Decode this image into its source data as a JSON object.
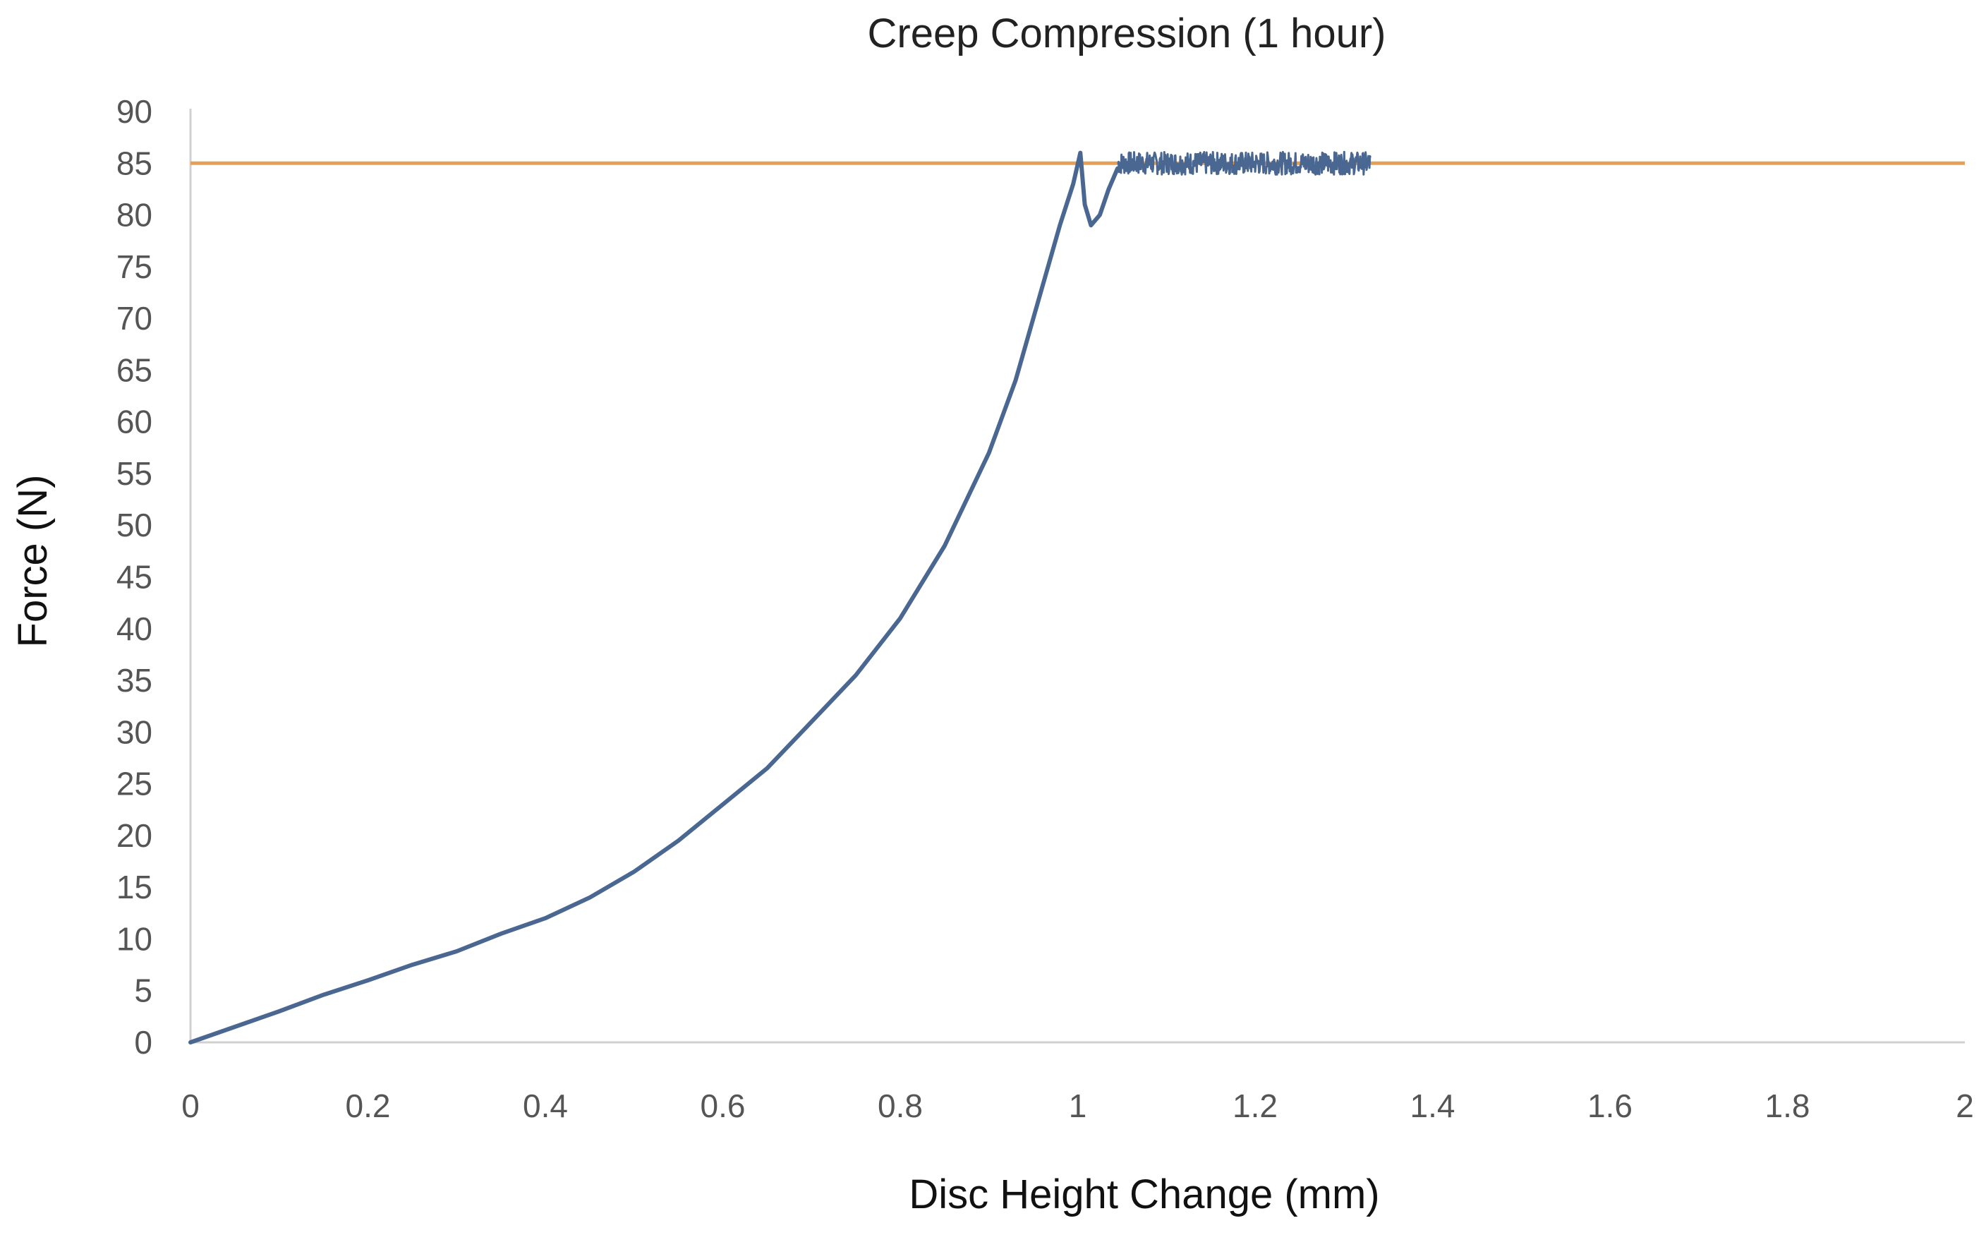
{
  "chart_data": {
    "type": "line",
    "title": "Creep Compression (1 hour)",
    "xlabel": "Disc Height Change  (mm)",
    "ylabel": "Force (N)",
    "xlim": [
      0,
      2
    ],
    "ylim": [
      0,
      90
    ],
    "x_ticks": [
      "0",
      "0.2",
      "0.4",
      "0.6",
      "0.8",
      "1",
      "1.2",
      "1.4",
      "1.6",
      "1.8",
      "2"
    ],
    "y_ticks": [
      "0",
      "5",
      "10",
      "15",
      "20",
      "25",
      "30",
      "35",
      "40",
      "45",
      "50",
      "55",
      "60",
      "65",
      "70",
      "75",
      "80",
      "85",
      "90"
    ],
    "grid": false,
    "legend": "none",
    "series": [
      {
        "color": "#4a6791",
        "x": [
          0,
          0.05,
          0.1,
          0.15,
          0.2,
          0.25,
          0.3,
          0.35,
          0.4,
          0.45,
          0.5,
          0.55,
          0.6,
          0.65,
          0.7,
          0.75,
          0.8,
          0.85,
          0.9,
          0.93,
          0.96,
          0.98,
          0.995,
          1.003,
          1.008,
          1.015,
          1.025,
          1.035,
          1.045
        ],
        "y": [
          0,
          1.5,
          3,
          4.6,
          6,
          7.5,
          8.8,
          10.5,
          12,
          14,
          16.5,
          19.5,
          23,
          26.5,
          31,
          35.5,
          41,
          48,
          57,
          64,
          73,
          79,
          83,
          86,
          81,
          79,
          80,
          82.5,
          84.5
        ]
      },
      {
        "color": "#4a6791",
        "noise_band": {
          "x_start": 1.045,
          "x_end": 1.33,
          "y_center": 85,
          "amplitude": 1.1
        }
      },
      {
        "color": "#e6a055",
        "x": [
          0,
          2
        ],
        "y": [
          85,
          85
        ]
      }
    ]
  }
}
